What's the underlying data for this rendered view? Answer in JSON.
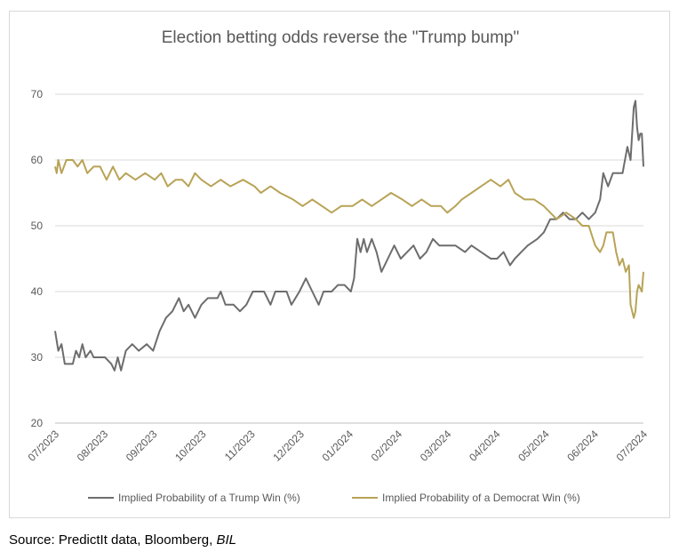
{
  "chart_data": {
    "type": "line",
    "title": "Election betting odds reverse the \"Trump bump\"",
    "ylim": [
      20,
      70
    ],
    "yticks": [
      20,
      30,
      40,
      50,
      60,
      70
    ],
    "xlim": [
      "2023-07-01",
      "2024-07-01"
    ],
    "xticks": [
      "07/2023",
      "08/2023",
      "09/2023",
      "10/2023",
      "11/2023",
      "12/2023",
      "01/2024",
      "02/2024",
      "03/2024",
      "04/2024",
      "05/2024",
      "06/2024",
      "07/2024"
    ],
    "grid": true,
    "legend_position": "bottom",
    "series": [
      {
        "name": "Implied Probability of a Trump Win (%)",
        "color": "#6d6d6d",
        "points": [
          [
            "2023-07-01",
            34
          ],
          [
            "2023-07-03",
            31
          ],
          [
            "2023-07-05",
            32
          ],
          [
            "2023-07-07",
            29
          ],
          [
            "2023-07-12",
            29
          ],
          [
            "2023-07-14",
            31
          ],
          [
            "2023-07-16",
            30
          ],
          [
            "2023-07-18",
            32
          ],
          [
            "2023-07-20",
            30
          ],
          [
            "2023-07-23",
            31
          ],
          [
            "2023-07-25",
            30
          ],
          [
            "2023-08-01",
            30
          ],
          [
            "2023-08-05",
            29
          ],
          [
            "2023-08-07",
            28
          ],
          [
            "2023-08-09",
            30
          ],
          [
            "2023-08-11",
            28
          ],
          [
            "2023-08-14",
            31
          ],
          [
            "2023-08-18",
            32
          ],
          [
            "2023-08-22",
            31
          ],
          [
            "2023-08-27",
            32
          ],
          [
            "2023-08-31",
            31
          ],
          [
            "2023-09-04",
            34
          ],
          [
            "2023-09-08",
            36
          ],
          [
            "2023-09-12",
            37
          ],
          [
            "2023-09-16",
            39
          ],
          [
            "2023-09-19",
            37
          ],
          [
            "2023-09-22",
            38
          ],
          [
            "2023-09-26",
            36
          ],
          [
            "2023-09-30",
            38
          ],
          [
            "2023-10-04",
            39
          ],
          [
            "2023-10-10",
            39
          ],
          [
            "2023-10-12",
            40
          ],
          [
            "2023-10-15",
            38
          ],
          [
            "2023-10-20",
            38
          ],
          [
            "2023-10-24",
            37
          ],
          [
            "2023-10-28",
            38
          ],
          [
            "2023-11-01",
            40
          ],
          [
            "2023-11-08",
            40
          ],
          [
            "2023-11-12",
            38
          ],
          [
            "2023-11-15",
            40
          ],
          [
            "2023-11-22",
            40
          ],
          [
            "2023-11-25",
            38
          ],
          [
            "2023-11-30",
            40
          ],
          [
            "2023-12-04",
            42
          ],
          [
            "2023-12-08",
            40
          ],
          [
            "2023-12-12",
            38
          ],
          [
            "2023-12-15",
            40
          ],
          [
            "2023-12-20",
            40
          ],
          [
            "2023-12-24",
            41
          ],
          [
            "2023-12-28",
            41
          ],
          [
            "2024-01-01",
            40
          ],
          [
            "2024-01-03",
            42
          ],
          [
            "2024-01-05",
            48
          ],
          [
            "2024-01-07",
            46
          ],
          [
            "2024-01-09",
            48
          ],
          [
            "2024-01-11",
            46
          ],
          [
            "2024-01-14",
            48
          ],
          [
            "2024-01-17",
            46
          ],
          [
            "2024-01-20",
            43
          ],
          [
            "2024-01-24",
            45
          ],
          [
            "2024-01-28",
            47
          ],
          [
            "2024-02-01",
            45
          ],
          [
            "2024-02-05",
            46
          ],
          [
            "2024-02-09",
            47
          ],
          [
            "2024-02-13",
            45
          ],
          [
            "2024-02-17",
            46
          ],
          [
            "2024-02-21",
            48
          ],
          [
            "2024-02-25",
            47
          ],
          [
            "2024-03-01",
            47
          ],
          [
            "2024-03-06",
            47
          ],
          [
            "2024-03-12",
            46
          ],
          [
            "2024-03-16",
            47
          ],
          [
            "2024-03-22",
            46
          ],
          [
            "2024-03-28",
            45
          ],
          [
            "2024-04-01",
            45
          ],
          [
            "2024-04-05",
            46
          ],
          [
            "2024-04-09",
            44
          ],
          [
            "2024-04-12",
            45
          ],
          [
            "2024-04-16",
            46
          ],
          [
            "2024-04-20",
            47
          ],
          [
            "2024-04-26",
            48
          ],
          [
            "2024-04-30",
            49
          ],
          [
            "2024-05-04",
            51
          ],
          [
            "2024-05-08",
            51
          ],
          [
            "2024-05-12",
            52
          ],
          [
            "2024-05-16",
            51
          ],
          [
            "2024-05-20",
            51
          ],
          [
            "2024-05-24",
            52
          ],
          [
            "2024-05-28",
            51
          ],
          [
            "2024-06-01",
            52
          ],
          [
            "2024-06-04",
            54
          ],
          [
            "2024-06-06",
            58
          ],
          [
            "2024-06-09",
            56
          ],
          [
            "2024-06-12",
            58
          ],
          [
            "2024-06-18",
            58
          ],
          [
            "2024-06-21",
            62
          ],
          [
            "2024-06-23",
            60
          ],
          [
            "2024-06-25",
            68
          ],
          [
            "2024-06-26",
            69
          ],
          [
            "2024-06-27",
            65
          ],
          [
            "2024-06-28",
            63
          ],
          [
            "2024-06-29",
            64
          ],
          [
            "2024-06-30",
            64
          ],
          [
            "2024-07-01",
            59
          ]
        ]
      },
      {
        "name": "Implied Probability of a Democrat Win (%)",
        "color": "#b8a356",
        "points": [
          [
            "2023-07-01",
            59
          ],
          [
            "2023-07-02",
            58
          ],
          [
            "2023-07-03",
            60
          ],
          [
            "2023-07-05",
            58
          ],
          [
            "2023-07-08",
            60
          ],
          [
            "2023-07-12",
            60
          ],
          [
            "2023-07-15",
            59
          ],
          [
            "2023-07-18",
            60
          ],
          [
            "2023-07-21",
            58
          ],
          [
            "2023-07-25",
            59
          ],
          [
            "2023-07-29",
            59
          ],
          [
            "2023-08-02",
            57
          ],
          [
            "2023-08-06",
            59
          ],
          [
            "2023-08-10",
            57
          ],
          [
            "2023-08-14",
            58
          ],
          [
            "2023-08-20",
            57
          ],
          [
            "2023-08-26",
            58
          ],
          [
            "2023-09-01",
            57
          ],
          [
            "2023-09-05",
            58
          ],
          [
            "2023-09-09",
            56
          ],
          [
            "2023-09-14",
            57
          ],
          [
            "2023-09-18",
            57
          ],
          [
            "2023-09-22",
            56
          ],
          [
            "2023-09-26",
            58
          ],
          [
            "2023-09-30",
            57
          ],
          [
            "2023-10-06",
            56
          ],
          [
            "2023-10-12",
            57
          ],
          [
            "2023-10-18",
            56
          ],
          [
            "2023-10-26",
            57
          ],
          [
            "2023-11-02",
            56
          ],
          [
            "2023-11-06",
            55
          ],
          [
            "2023-11-12",
            56
          ],
          [
            "2023-11-18",
            55
          ],
          [
            "2023-11-26",
            54
          ],
          [
            "2023-12-02",
            53
          ],
          [
            "2023-12-08",
            54
          ],
          [
            "2023-12-14",
            53
          ],
          [
            "2023-12-20",
            52
          ],
          [
            "2023-12-26",
            53
          ],
          [
            "2024-01-02",
            53
          ],
          [
            "2024-01-08",
            54
          ],
          [
            "2024-01-14",
            53
          ],
          [
            "2024-01-20",
            54
          ],
          [
            "2024-01-26",
            55
          ],
          [
            "2024-02-02",
            54
          ],
          [
            "2024-02-08",
            53
          ],
          [
            "2024-02-14",
            54
          ],
          [
            "2024-02-20",
            53
          ],
          [
            "2024-02-26",
            53
          ],
          [
            "2024-03-01",
            52
          ],
          [
            "2024-03-06",
            53
          ],
          [
            "2024-03-10",
            54
          ],
          [
            "2024-03-16",
            55
          ],
          [
            "2024-03-22",
            56
          ],
          [
            "2024-03-28",
            57
          ],
          [
            "2024-04-03",
            56
          ],
          [
            "2024-04-08",
            57
          ],
          [
            "2024-04-12",
            55
          ],
          [
            "2024-04-18",
            54
          ],
          [
            "2024-04-24",
            54
          ],
          [
            "2024-04-30",
            53
          ],
          [
            "2024-05-04",
            52
          ],
          [
            "2024-05-08",
            51
          ],
          [
            "2024-05-14",
            52
          ],
          [
            "2024-05-20",
            51
          ],
          [
            "2024-05-24",
            50
          ],
          [
            "2024-05-28",
            50
          ],
          [
            "2024-06-01",
            47
          ],
          [
            "2024-06-04",
            46
          ],
          [
            "2024-06-06",
            47
          ],
          [
            "2024-06-08",
            49
          ],
          [
            "2024-06-12",
            49
          ],
          [
            "2024-06-14",
            46
          ],
          [
            "2024-06-16",
            44
          ],
          [
            "2024-06-18",
            45
          ],
          [
            "2024-06-20",
            43
          ],
          [
            "2024-06-22",
            44
          ],
          [
            "2024-06-23",
            38
          ],
          [
            "2024-06-24",
            37
          ],
          [
            "2024-06-25",
            36
          ],
          [
            "2024-06-26",
            37
          ],
          [
            "2024-06-27",
            40
          ],
          [
            "2024-06-28",
            41
          ],
          [
            "2024-06-30",
            40
          ],
          [
            "2024-07-01",
            43
          ]
        ]
      }
    ]
  },
  "source": {
    "prefix": "Source: PredictIt data, Bloomberg, ",
    "italic": "BIL"
  }
}
